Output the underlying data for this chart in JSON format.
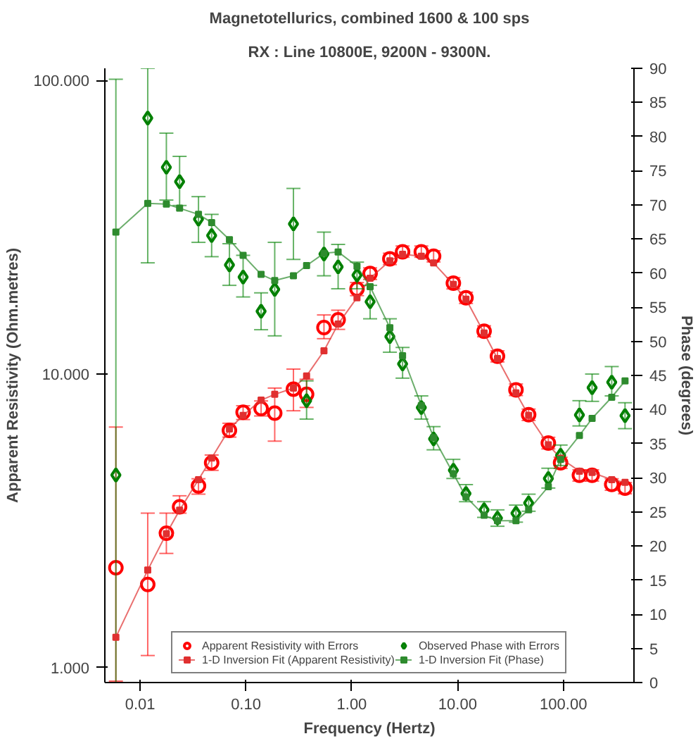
{
  "chart_data": {
    "type": "scatter",
    "title": "Magnetotellurics, combined 1600 & 100 sps",
    "subtitle": "RX : Line 10800E, 9200N - 9300N.",
    "xlabel": "Frequency (Hertz)",
    "ylabel": "Apparent Resistivity (Ohm.metres)",
    "y2label": "Phase (degrees)",
    "log": "xy",
    "grid": false,
    "legend": "bottom",
    "xlim": [
      0.00464,
      464
    ],
    "xticks": [
      {
        "value": 0.01,
        "label": "0.01"
      },
      {
        "value": 0.1,
        "label": "0.10"
      },
      {
        "value": 1,
        "label": "1.00"
      },
      {
        "value": 10,
        "label": "10.00"
      },
      {
        "value": 100,
        "label": "100.00"
      }
    ],
    "ylim": [
      0.89,
      110
    ],
    "yticks": [
      {
        "value": 1,
        "label": "1.000"
      },
      {
        "value": 10,
        "label": "10.000"
      },
      {
        "value": 100,
        "label": "100.000"
      }
    ],
    "y2lim": [
      0,
      90
    ],
    "y2ticks": [
      0,
      5,
      10,
      15,
      20,
      25,
      30,
      35,
      40,
      45,
      50,
      55,
      60,
      65,
      70,
      75,
      80,
      85,
      90
    ],
    "x": [
      0.0059,
      0.0118,
      0.0177,
      0.0236,
      0.0356,
      0.0474,
      0.0698,
      0.094,
      0.139,
      0.187,
      0.281,
      0.374,
      0.546,
      0.743,
      1.12,
      1.49,
      2.29,
      3.02,
      4.54,
      5.93,
      9.12,
      12.0,
      17.8,
      23.8,
      35.6,
      46.9,
      72,
      94,
      141.6,
      186.6,
      286,
      382
    ],
    "series": [
      {
        "name": "Apparent Resistivity with Errors",
        "marker": "circle",
        "color": "#ff0000",
        "values": [
          2.19,
          1.92,
          2.87,
          3.53,
          4.16,
          4.99,
          6.43,
          7.41,
          7.63,
          7.36,
          8.89,
          8.53,
          14.4,
          15.3,
          19.5,
          22.0,
          24.7,
          26.1,
          26.1,
          25.2,
          20.4,
          18.2,
          14.0,
          11.5,
          8.84,
          7.27,
          5.82,
          4.99,
          4.52,
          4.52,
          4.21,
          4.09
        ],
        "errors": [
          [
            0.9,
            6.6
          ],
          [
            1.1,
            3.36
          ],
          [
            2.45,
            3.36
          ],
          [
            3.36,
            3.85
          ],
          [
            3.9,
            4.4
          ],
          [
            4.7,
            5.3
          ],
          [
            6.1,
            6.8
          ],
          [
            7.0,
            7.8
          ],
          [
            7.2,
            8.1
          ],
          [
            5.91,
            8.96
          ],
          [
            7.5,
            10.4
          ],
          [
            7.7,
            9.6
          ],
          [
            13.2,
            15.9
          ],
          [
            14.2,
            16.5
          ],
          [
            18.5,
            20.5
          ],
          [
            21,
            23
          ],
          [
            23.6,
            25.8
          ],
          [
            25,
            27.3
          ],
          [
            25,
            27.3
          ],
          [
            24.1,
            26.3
          ],
          [
            19.5,
            21.3
          ],
          [
            17.4,
            19
          ],
          [
            13.4,
            14.6
          ],
          [
            11,
            12
          ],
          [
            8.45,
            9.25
          ],
          [
            6.95,
            7.6
          ],
          [
            5.56,
            6.09
          ],
          [
            4.77,
            5.21
          ],
          [
            4.32,
            4.72
          ],
          [
            4.32,
            4.72
          ],
          [
            4.02,
            4.4
          ],
          [
            3.91,
            4.27
          ]
        ]
      },
      {
        "name": "1-D Inversion Fit (Apparent Resistivity)",
        "type": "line",
        "marker": "square",
        "line_style": "solid",
        "color": "#e03030",
        "values": [
          1.27,
          2.15,
          2.86,
          3.44,
          4.37,
          5.18,
          6.5,
          7.23,
          8.15,
          8.53,
          8.96,
          9.86,
          12.0,
          14.8,
          18.2,
          21.2,
          24.3,
          25.6,
          25.2,
          23.9,
          20.2,
          18.0,
          13.8,
          11.3,
          8.63,
          7.23,
          5.74,
          5.17,
          4.67,
          4.62,
          4.37,
          4.28
        ]
      },
      {
        "name": "Observed Phase with Errors",
        "marker": "diamond",
        "axis": "y2",
        "color": "#008000",
        "values": [
          30.4,
          82.7,
          75.5,
          73.4,
          67.9,
          65.5,
          61.2,
          59.4,
          54.4,
          57.6,
          67.2,
          41.3,
          62.8,
          60.9,
          59.7,
          55.8,
          50.7,
          46.7,
          40.3,
          35.7,
          31.1,
          27.7,
          25.3,
          24.1,
          24.8,
          26.3,
          29.9,
          33.3,
          39.2,
          43.2,
          44.0,
          39.1
        ],
        "errors": [
          [
            0,
            88.4
          ],
          [
            61.5,
            90
          ],
          [
            70.7,
            80.5
          ],
          [
            69.9,
            77.1
          ],
          [
            64.5,
            71.2
          ],
          [
            62.4,
            68.6
          ],
          [
            58.2,
            64.3
          ],
          [
            56.5,
            62.6
          ],
          [
            51.7,
            57.1
          ],
          [
            50.8,
            64.5
          ],
          [
            62.0,
            72.4
          ],
          [
            38.6,
            44.2
          ],
          [
            59.6,
            66.0
          ],
          [
            57.7,
            64.2
          ],
          [
            57.7,
            61.6
          ],
          [
            53.3,
            58.2
          ],
          [
            48.4,
            53.3
          ],
          [
            44.6,
            49.1
          ],
          [
            38.6,
            42.0
          ],
          [
            34.1,
            37.5
          ],
          [
            29.9,
            32.7
          ],
          [
            26.5,
            29.0
          ],
          [
            24.2,
            26.5
          ],
          [
            22.9,
            25.3
          ],
          [
            23.5,
            26.0
          ],
          [
            25.1,
            27.6
          ],
          [
            28.5,
            31.4
          ],
          [
            31.8,
            34.8
          ],
          [
            37.6,
            41.3
          ],
          [
            41.2,
            45.2
          ],
          [
            42.0,
            46.3
          ],
          [
            37.2,
            41.0
          ]
        ]
      },
      {
        "name": "1-D Inversion Fit (Phase)",
        "type": "line",
        "marker": "square",
        "line_style": "solid",
        "axis": "y2",
        "color": "#2e8b2e",
        "values": [
          66.0,
          70.2,
          70.1,
          69.5,
          68.6,
          67.4,
          64.9,
          62.6,
          59.8,
          58.9,
          59.6,
          61.1,
          62.9,
          63.1,
          61.0,
          58.0,
          52.0,
          47.9,
          40.6,
          35.9,
          30.6,
          27.2,
          24.5,
          23.7,
          23.7,
          25.3,
          28.7,
          32.7,
          36.2,
          38.7,
          41.8,
          44.2
        ]
      }
    ]
  }
}
